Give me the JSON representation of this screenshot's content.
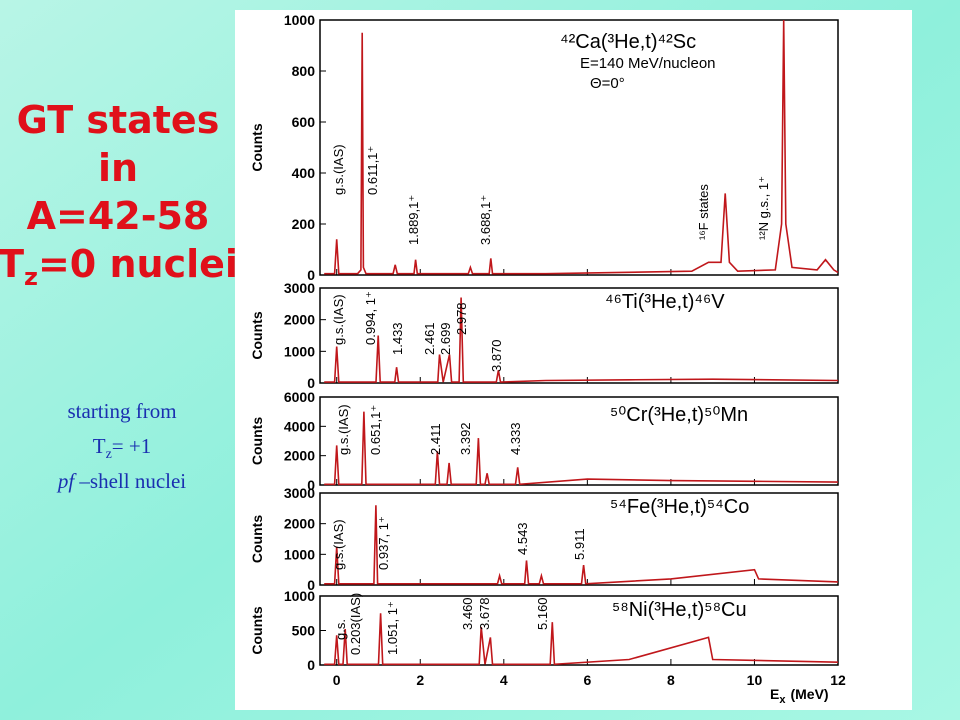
{
  "slide": {
    "heading_lines": [
      "GT states",
      "in",
      "A=42-58"
    ],
    "heading_tz": [
      "T",
      "z",
      "=0 nuclei"
    ],
    "note_line1": "starting from",
    "note_tz": [
      "T",
      "z",
      "= +1"
    ],
    "note_pf": [
      "pf",
      " –shell nuclei"
    ]
  },
  "chart_data": [
    {
      "type": "line",
      "title": "⁴²Ca(³He,t)⁴²Sc",
      "subtitles": [
        "E=140 MeV/nucleon",
        "Θ=0°"
      ],
      "ylabel": "Counts",
      "color": "#c0171b",
      "xlim": [
        -0.4,
        12
      ],
      "xticks": [
        0,
        2,
        4,
        6,
        8,
        10,
        12
      ],
      "ylim": [
        0,
        1000
      ],
      "yticks": [
        0,
        200,
        400,
        600,
        800,
        1000
      ],
      "x": [
        -0.3,
        -0.05,
        0,
        0.05,
        0.5,
        0.58,
        0.611,
        0.64,
        0.7,
        1.35,
        1.4,
        1.45,
        1.85,
        1.889,
        1.93,
        3.15,
        3.2,
        3.25,
        3.65,
        3.688,
        3.73,
        5,
        8.5,
        8.9,
        9.2,
        9.3,
        9.4,
        9.6,
        10.5,
        10.65,
        10.7,
        10.75,
        10.9,
        11.5,
        11.7,
        11.9,
        12
      ],
      "values": [
        5,
        5,
        140,
        5,
        5,
        20,
        950,
        30,
        5,
        5,
        40,
        5,
        5,
        60,
        5,
        5,
        30,
        5,
        5,
        65,
        5,
        5,
        15,
        50,
        50,
        320,
        50,
        15,
        20,
        200,
        1000,
        200,
        30,
        20,
        60,
        20,
        10
      ],
      "annotations": [
        "g.s.(IAS)",
        "0.611,1⁺",
        "1.889,1⁺",
        "3.688,1⁺",
        "¹⁶F states",
        "¹²N g.s., 1⁺"
      ]
    },
    {
      "type": "line",
      "title": "⁴⁶Ti(³He,t)⁴⁶V",
      "ylabel": "Counts",
      "color": "#c0171b",
      "xlim": [
        -0.4,
        12
      ],
      "xticks": [
        0,
        2,
        4,
        6,
        8,
        10,
        12
      ],
      "ylim": [
        0,
        3000
      ],
      "yticks": [
        0,
        1000,
        2000,
        3000
      ],
      "x": [
        -0.3,
        -0.05,
        0,
        0.05,
        0.94,
        0.994,
        1.04,
        1.39,
        1.433,
        1.48,
        2.42,
        2.461,
        2.55,
        2.699,
        2.75,
        2.93,
        2.978,
        3.03,
        3.82,
        3.87,
        3.92,
        5,
        7,
        9,
        12
      ],
      "values": [
        30,
        30,
        1150,
        30,
        30,
        1500,
        30,
        30,
        500,
        30,
        30,
        900,
        30,
        900,
        30,
        30,
        2700,
        30,
        30,
        400,
        30,
        80,
        100,
        120,
        80
      ],
      "annotations": [
        "g.s.(IAS)",
        "0.994, 1⁺",
        "1.433",
        "2.461",
        "2.699",
        "2.978",
        "3.870"
      ]
    },
    {
      "type": "line",
      "title": "⁵⁰Cr(³He,t)⁵⁰Mn",
      "ylabel": "Counts",
      "color": "#c0171b",
      "xlim": [
        -0.4,
        12
      ],
      "xticks": [
        0,
        2,
        4,
        6,
        8,
        10,
        12
      ],
      "ylim": [
        0,
        6000
      ],
      "yticks": [
        0,
        2000,
        4000,
        6000
      ],
      "x": [
        -0.3,
        -0.05,
        0,
        0.05,
        0.6,
        0.651,
        0.7,
        2.36,
        2.411,
        2.46,
        2.64,
        2.69,
        2.74,
        3.34,
        3.392,
        3.44,
        3.55,
        3.6,
        3.65,
        4.28,
        4.333,
        4.38,
        6,
        8,
        10,
        12
      ],
      "values": [
        50,
        50,
        2700,
        50,
        50,
        5000,
        50,
        50,
        2300,
        50,
        50,
        1500,
        50,
        50,
        3200,
        50,
        50,
        800,
        50,
        50,
        1200,
        50,
        400,
        300,
        250,
        200
      ],
      "annotations": [
        "g.s.(IAS)",
        "0.651,1⁺",
        "2.411",
        "3.392",
        "4.333"
      ]
    },
    {
      "type": "line",
      "title": "⁵⁴Fe(³He,t)⁵⁴Co",
      "ylabel": "Counts",
      "color": "#c0171b",
      "xlim": [
        -0.4,
        12
      ],
      "xticks": [
        0,
        2,
        4,
        6,
        8,
        10,
        12
      ],
      "ylim": [
        0,
        3000
      ],
      "yticks": [
        0,
        1000,
        2000,
        3000
      ],
      "x": [
        -0.3,
        -0.05,
        0,
        0.05,
        0.89,
        0.937,
        0.98,
        3.85,
        3.9,
        3.95,
        4.5,
        4.543,
        4.59,
        4.85,
        4.9,
        4.95,
        5.86,
        5.911,
        5.96,
        8,
        10,
        10.1,
        12
      ],
      "values": [
        40,
        40,
        1250,
        40,
        40,
        2600,
        40,
        40,
        300,
        40,
        40,
        800,
        40,
        40,
        300,
        40,
        40,
        650,
        40,
        200,
        500,
        200,
        100
      ],
      "annotations": [
        "g.s.(IAS)",
        "0.937, 1⁺",
        "4.543",
        "5.911"
      ]
    },
    {
      "type": "line",
      "title": "⁵⁸Ni(³He,t)⁵⁸Cu",
      "ylabel": "Counts",
      "xlabel": [
        "E",
        "x",
        "(MeV)"
      ],
      "color": "#c0171b",
      "xlim": [
        -0.4,
        12
      ],
      "xticks": [
        0,
        2,
        4,
        6,
        8,
        10,
        12
      ],
      "ylim": [
        0,
        1000
      ],
      "yticks": [
        0,
        500,
        1000
      ],
      "x": [
        -0.3,
        -0.05,
        0,
        0.05,
        0.15,
        0.203,
        0.25,
        1,
        1.051,
        1.1,
        3.41,
        3.46,
        3.55,
        3.678,
        3.73,
        5.11,
        5.16,
        5.21,
        7,
        8.9,
        9.0,
        12
      ],
      "values": [
        10,
        10,
        430,
        10,
        10,
        520,
        10,
        10,
        750,
        10,
        10,
        550,
        10,
        400,
        10,
        10,
        620,
        10,
        80,
        400,
        80,
        40
      ],
      "annotations": [
        "g.s.",
        "0.203(IAS)",
        "1.051, 1⁺",
        "3.460",
        "3.678",
        "5.160"
      ]
    }
  ]
}
